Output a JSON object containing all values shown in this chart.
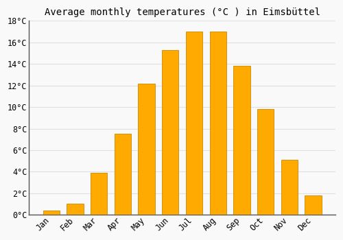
{
  "months": [
    "Jan",
    "Feb",
    "Mar",
    "Apr",
    "May",
    "Jun",
    "Jul",
    "Aug",
    "Sep",
    "Oct",
    "Nov",
    "Dec"
  ],
  "values": [
    0.4,
    1.0,
    3.9,
    7.5,
    12.2,
    15.3,
    17.0,
    17.0,
    13.8,
    9.8,
    5.1,
    1.8
  ],
  "bar_color": "#FFAA00",
  "bar_edge_color": "#CC8800",
  "title": "Average monthly temperatures (°C ) in Eimsbüttel",
  "ylim": [
    0,
    18
  ],
  "yticks": [
    0,
    2,
    4,
    6,
    8,
    10,
    12,
    14,
    16,
    18
  ],
  "title_fontsize": 10,
  "tick_fontsize": 8.5,
  "background_color": "#f9f9f9",
  "grid_color": "#e0e0e0",
  "bar_width": 0.7
}
